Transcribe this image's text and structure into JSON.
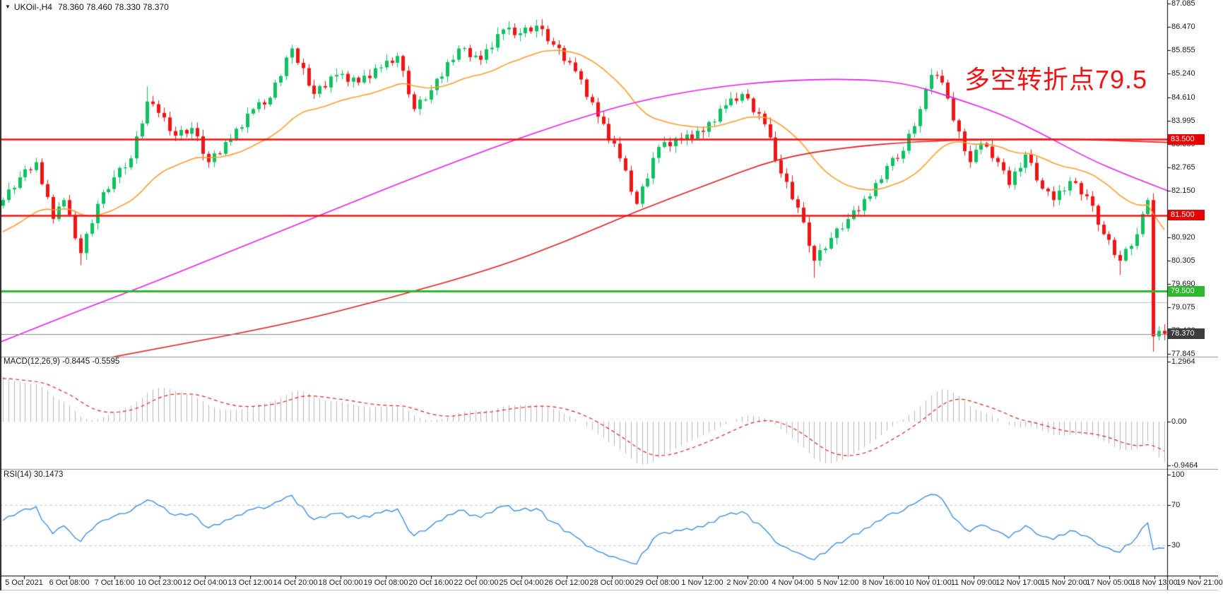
{
  "title": {
    "arrow": "▼",
    "symbol_period": "UKOil-,H4",
    "ohlc": "78.360 78.460 78.330 78.370"
  },
  "annotation": {
    "text": "多空转折点79.5"
  },
  "macd_panel": {
    "label": "MACD(12,26,9) -0.8445 -0.5595",
    "axis": [
      {
        "text": "1.2964",
        "value": 1.2964
      },
      {
        "text": "0.00",
        "value": 0
      },
      {
        "text": "-0.9464",
        "value": -0.9464
      }
    ]
  },
  "rsi_panel": {
    "label": "RSI(14) 30.1473",
    "axis": [
      {
        "text": "100",
        "value": 100
      },
      {
        "text": "70",
        "value": 70
      },
      {
        "text": "30",
        "value": 30
      }
    ]
  },
  "price_axis_ticks": [
    "87.085",
    "86.470",
    "85.855",
    "85.240",
    "84.610",
    "83.995",
    "83.380",
    "82.765",
    "82.150",
    "80.920",
    "80.305",
    "79.690",
    "79.075",
    "78.460",
    "77.845"
  ],
  "price_chips": [
    {
      "label": "83.500",
      "price": 83.5,
      "bg": "#e60000"
    },
    {
      "label": "81.500",
      "price": 81.5,
      "bg": "#e60000"
    },
    {
      "label": "79.500",
      "price": 79.5,
      "bg": "#2eb82e"
    },
    {
      "label": "78.370",
      "price": 78.37,
      "bg": "#3c3c3c"
    }
  ],
  "colors": {
    "up": "#0fc162",
    "down": "#f21414",
    "ma_fast": "#ff9d2e",
    "ma_mid": "#e81ee8",
    "ma_slow": "#e02020",
    "level_red": "#ed1515",
    "level_green": "#2eb82e",
    "current_line": "#8a8a8a",
    "minor_blue": "#a9c7e8",
    "macd_bar": "#b8b8b8",
    "macd_signal": "#e02020",
    "rsi_line": "#3f8fdf",
    "grid_dash": "#c8c8c8",
    "annotation": "#f21414"
  },
  "chart_data": {
    "type": "candlestick",
    "symbol": "UKOil-",
    "timeframe": "H4",
    "title": "UKOil-,H4",
    "last_ohlc": {
      "open": 78.36,
      "high": 78.46,
      "low": 78.33,
      "close": 78.37
    },
    "x_labels": [
      "5 Oct 2021",
      "6 Oct 08:00",
      "7 Oct 16:00",
      "10 Oct 23:00",
      "12 Oct 04:00",
      "13 Oct 12:00",
      "14 Oct 20:00",
      "18 Oct 00:00",
      "19 Oct 08:00",
      "20 Oct 16:00",
      "22 Oct 00:00",
      "25 Oct 04:00",
      "26 Oct 12:00",
      "28 Oct 00:00",
      "29 Oct 08:00",
      "1 Nov 12:00",
      "2 Nov 20:00",
      "4 Nov 04:00",
      "5 Nov 12:00",
      "8 Nov 16:00",
      "10 Nov 01:00",
      "11 Nov 09:00",
      "12 Nov 17:00",
      "15 Nov 20:00",
      "17 Nov 05:00",
      "18 Nov 13:00",
      "19 Nov 21:00"
    ],
    "y_range": [
      77.76,
      87.18
    ],
    "first_open": 81.75,
    "closes": [
      81.9,
      82.18,
      82.22,
      82.5,
      82.71,
      82.69,
      82.9,
      82.32,
      81.98,
      81.4,
      81.73,
      81.9,
      81.51,
      80.89,
      80.5,
      81.01,
      81.29,
      81.8,
      82.11,
      82.19,
      82.5,
      82.75,
      82.76,
      83.0,
      83.58,
      83.92,
      84.5,
      84.43,
      84.2,
      84.08,
      83.72,
      83.6,
      83.75,
      83.65,
      83.8,
      83.58,
      83.12,
      82.9,
      83.13,
      83.12,
      83.43,
      83.5,
      83.78,
      83.82,
      84.18,
      84.3,
      84.48,
      84.42,
      84.6,
      85.0,
      85.17,
      85.66,
      85.9,
      85.52,
      85.38,
      84.92,
      84.7,
      84.91,
      84.87,
      85.16,
      85.2,
      85.23,
      85.02,
      85.13,
      85.0,
      85.18,
      85.12,
      85.38,
      85.4,
      85.58,
      85.52,
      85.7,
      85.31,
      84.69,
      84.3,
      84.55,
      84.55,
      84.8,
      85.1,
      85.16,
      85.54,
      85.6,
      85.9,
      85.91,
      85.67,
      85.71,
      85.6,
      85.88,
      85.92,
      86.28,
      86.4,
      86.45,
      86.25,
      86.3,
      86.45,
      86.35,
      86.5,
      86.41,
      86.09,
      86.0,
      85.91,
      85.57,
      85.53,
      85.3,
      85.08,
      84.62,
      84.48,
      84.1,
      83.91,
      83.47,
      83.39,
      83.0,
      82.68,
      82.12,
      81.8,
      82.26,
      82.47,
      83.01,
      83.3,
      83.43,
      83.32,
      83.53,
      83.5,
      83.63,
      83.52,
      83.73,
      83.7,
      83.96,
      83.97,
      84.31,
      84.4,
      84.58,
      84.52,
      84.7,
      84.58,
      84.22,
      84.18,
      83.9,
      83.55,
      82.95,
      82.6,
      82.38,
      81.92,
      81.7,
      81.31,
      80.69,
      80.3,
      80.58,
      80.62,
      80.9,
      81.15,
      81.15,
      81.4,
      81.63,
      81.62,
      81.93,
      82.0,
      82.35,
      82.45,
      82.8,
      83.01,
      82.99,
      83.2,
      83.65,
      83.85,
      84.3,
      84.83,
      85.2,
      85.18,
      85.0,
      84.58,
      84.0,
      83.71,
      83.19,
      82.9,
      83.23,
      83.4,
      83.31,
      83.01,
      82.9,
      82.68,
      82.3,
      82.65,
      82.75,
      83.1,
      82.88,
      82.42,
      82.2,
      82.13,
      81.9,
      82.15,
      82.15,
      82.4,
      82.35,
      82.05,
      82.0,
      81.75,
      81.25,
      81.0,
      80.85,
      80.45,
      80.3,
      80.61,
      80.69,
      81.0,
      81.53,
      81.9,
      78.3,
      78.45,
      78.37
    ],
    "low_overrides": {
      "14": 80.18,
      "146": 79.85,
      "201": 79.92,
      "207": 77.9,
      "209": 78.2
    },
    "high_overrides": {
      "26": 84.9,
      "52": 86.0,
      "91": 86.62,
      "96": 86.66
    },
    "horizontal_levels": [
      {
        "price": 83.5,
        "color": "red",
        "label": "83.500"
      },
      {
        "price": 81.5,
        "color": "red",
        "label": "81.500"
      },
      {
        "price": 79.5,
        "color": "green",
        "label": "79.500"
      },
      {
        "price": 79.21,
        "color": "lightblue",
        "label": ""
      }
    ],
    "current_price": 78.37,
    "moving_averages": {
      "fast_ema_period": 28,
      "mid_anchors": [
        [
          0,
          78.15
        ],
        [
          100,
          78.9
        ],
        [
          200,
          79.6
        ],
        [
          300,
          80.35
        ],
        [
          400,
          81.1
        ],
        [
          500,
          81.85
        ],
        [
          600,
          82.6
        ],
        [
          700,
          83.3
        ],
        [
          800,
          83.95
        ],
        [
          900,
          84.5
        ],
        [
          1000,
          84.85
        ],
        [
          1100,
          85.05
        ],
        [
          1200,
          85.1
        ],
        [
          1280,
          85.0
        ],
        [
          1350,
          84.6
        ],
        [
          1420,
          84.15
        ],
        [
          1480,
          83.6
        ],
        [
          1540,
          83.0
        ],
        [
          1590,
          82.6
        ],
        [
          1652,
          82.15
        ]
      ],
      "slow_anchors": [
        [
          0,
          77.2
        ],
        [
          200,
          77.9
        ],
        [
          400,
          78.6
        ],
        [
          550,
          79.3
        ],
        [
          700,
          80.1
        ],
        [
          800,
          80.8
        ],
        [
          900,
          81.6
        ],
        [
          1000,
          82.3
        ],
        [
          1100,
          83.0
        ],
        [
          1200,
          83.3
        ],
        [
          1300,
          83.45
        ],
        [
          1400,
          83.5
        ],
        [
          1500,
          83.52
        ],
        [
          1652,
          83.42
        ]
      ]
    },
    "indicators": {
      "macd": {
        "fast": 12,
        "slow": 26,
        "signal": 9,
        "current_macd": -0.8445,
        "current_signal": -0.5595,
        "axis_max": 1.2964,
        "axis_min": -0.9464
      },
      "rsi": {
        "period": 14,
        "current": 30.1473,
        "dashed_levels": [
          70,
          30
        ],
        "axis": [
          100,
          70,
          30
        ]
      }
    }
  }
}
